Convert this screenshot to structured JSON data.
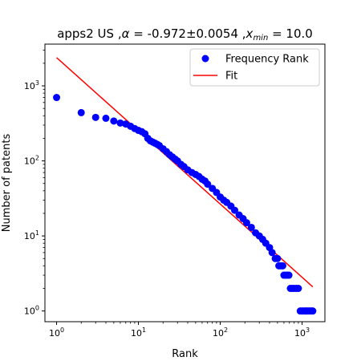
{
  "chart_data": {
    "type": "scatter",
    "title": {
      "prefix": "apps2 US ,",
      "alpha_symbol": "α",
      "alpha_value": " = -0.972±0.0054 ,",
      "xmin_symbol": "x",
      "xmin_sub": "min",
      "xmin_value": " = 10.0"
    },
    "xlabel": "Rank",
    "ylabel": "Number of patents",
    "xscale": "log",
    "yscale": "log",
    "xlim": [
      0.72,
      1900
    ],
    "ylim": [
      0.72,
      3600
    ],
    "x_ticks": [
      {
        "value": 1,
        "label": "10",
        "exp": "0"
      },
      {
        "value": 10,
        "label": "10",
        "exp": "1"
      },
      {
        "value": 100,
        "label": "10",
        "exp": "2"
      },
      {
        "value": 1000,
        "label": "10",
        "exp": "3"
      }
    ],
    "y_ticks": [
      {
        "value": 1,
        "label": "10",
        "exp": "0"
      },
      {
        "value": 10,
        "label": "10",
        "exp": "1"
      },
      {
        "value": 100,
        "label": "10",
        "exp": "2"
      },
      {
        "value": 1000,
        "label": "10",
        "exp": "3"
      }
    ],
    "grid": false,
    "legend": {
      "position": "top-right",
      "entries": [
        {
          "label": "Frequency Rank",
          "kind": "marker",
          "color": "#0000ff"
        },
        {
          "label": "Fit",
          "kind": "line",
          "color": "#ff0000"
        }
      ]
    },
    "series": [
      {
        "name": "Frequency Rank",
        "kind": "scatter",
        "color": "#0000ff",
        "points": [
          [
            1,
            700
          ],
          [
            2,
            440
          ],
          [
            3,
            380
          ],
          [
            4,
            370
          ],
          [
            5,
            340
          ],
          [
            6,
            320
          ],
          [
            7,
            310
          ],
          [
            8,
            290
          ],
          [
            9,
            270
          ],
          [
            10,
            255
          ],
          [
            11,
            245
          ],
          [
            12,
            230
          ],
          [
            13,
            200
          ],
          [
            14,
            185
          ],
          [
            15,
            178
          ],
          [
            16,
            172
          ],
          [
            17,
            166
          ],
          [
            18,
            160
          ],
          [
            20,
            145
          ],
          [
            22,
            133
          ],
          [
            24,
            121
          ],
          [
            26,
            113
          ],
          [
            28,
            106
          ],
          [
            30,
            100
          ],
          [
            33,
            90
          ],
          [
            36,
            84
          ],
          [
            40,
            76
          ],
          [
            45,
            70
          ],
          [
            50,
            66
          ],
          [
            55,
            62
          ],
          [
            60,
            57
          ],
          [
            65,
            54
          ],
          [
            70,
            49
          ],
          [
            80,
            43
          ],
          [
            90,
            38
          ],
          [
            100,
            33
          ],
          [
            110,
            30
          ],
          [
            120,
            28
          ],
          [
            135,
            25
          ],
          [
            150,
            22
          ],
          [
            170,
            19
          ],
          [
            190,
            17
          ],
          [
            210,
            15
          ],
          [
            240,
            13
          ],
          [
            270,
            11
          ],
          [
            300,
            10
          ],
          [
            330,
            9
          ],
          [
            360,
            8
          ],
          [
            400,
            7
          ],
          [
            430,
            6
          ],
          [
            470,
            5
          ],
          [
            500,
            5
          ],
          [
            520,
            4
          ],
          [
            550,
            4
          ],
          [
            580,
            4
          ],
          [
            600,
            3
          ],
          [
            630,
            3
          ],
          [
            660,
            3
          ],
          [
            690,
            3
          ],
          [
            720,
            2
          ],
          [
            760,
            2
          ],
          [
            800,
            2
          ],
          [
            850,
            2
          ],
          [
            900,
            2
          ],
          [
            950,
            1
          ],
          [
            1000,
            1
          ],
          [
            1050,
            1
          ],
          [
            1100,
            1
          ],
          [
            1150,
            1
          ],
          [
            1200,
            1
          ],
          [
            1250,
            1
          ],
          [
            1300,
            1
          ],
          [
            1350,
            1
          ]
        ]
      },
      {
        "name": "Fit",
        "kind": "line",
        "color": "#ff0000",
        "points": [
          [
            1,
            2380
          ],
          [
            1350,
            2.1
          ]
        ]
      }
    ]
  }
}
